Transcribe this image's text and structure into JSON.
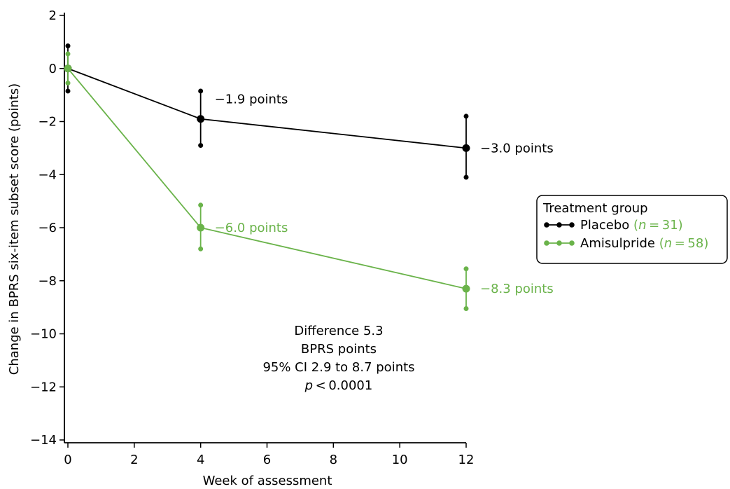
{
  "chart_data": {
    "type": "line",
    "xlabel": "Week of assessment",
    "ylabel": "Change in BPRS six-item subset score (points)",
    "xlim": [
      0,
      12
    ],
    "ylim": [
      -14,
      2
    ],
    "xticks": [
      0,
      2,
      4,
      6,
      8,
      10,
      12
    ],
    "yticks": [
      2,
      0,
      -2,
      -4,
      -6,
      -8,
      -10,
      -12,
      -14
    ],
    "xtick_labels": [
      "0",
      "2",
      "4",
      "6",
      "8",
      "10",
      "12"
    ],
    "ytick_labels": [
      "2",
      "0",
      "−2",
      "−4",
      "−6",
      "−8",
      "−10",
      "−12",
      "−14"
    ],
    "grid": false,
    "legend_position": "right",
    "legend_title": "Treatment group",
    "series": [
      {
        "name": "Placebo",
        "n_label": "n",
        "n_text": " = 31",
        "color": "#000000",
        "x": [
          0,
          4,
          12
        ],
        "y": [
          0,
          -1.9,
          -3.0
        ],
        "ci_lower": [
          -0.85,
          -2.9,
          -4.1
        ],
        "ci_upper": [
          0.85,
          -0.85,
          -1.8
        ],
        "labels": [
          "",
          "−1.9 points",
          "−3.0 points"
        ]
      },
      {
        "name": "Amisulpride",
        "n_label": "n",
        "n_text": " = 58",
        "color": "#6ab34a",
        "x": [
          0,
          4,
          12
        ],
        "y": [
          0,
          -6.0,
          -8.3
        ],
        "ci_lower": [
          -0.55,
          -6.8,
          -9.05
        ],
        "ci_upper": [
          0.55,
          -5.15,
          -7.55
        ],
        "labels": [
          "",
          "−6.0 points",
          "−8.3 points"
        ]
      }
    ],
    "annotation_lines": [
      {
        "text": "Difference 5.3"
      },
      {
        "text": "BPRS points"
      },
      {
        "text": "95% CI 2.9 to 8.7 points"
      },
      {
        "italic": "p",
        "text": " < 0.0001"
      }
    ]
  }
}
